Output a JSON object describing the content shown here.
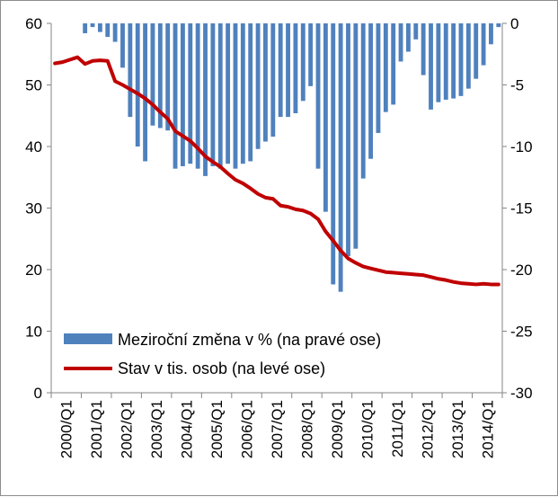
{
  "chart_data": {
    "type": "bar+line",
    "title": "",
    "x": [
      "2000/Q1",
      "2000/Q2",
      "2000/Q3",
      "2000/Q4",
      "2001/Q1",
      "2001/Q2",
      "2001/Q3",
      "2001/Q4",
      "2002/Q1",
      "2002/Q2",
      "2002/Q3",
      "2002/Q4",
      "2003/Q1",
      "2003/Q2",
      "2003/Q3",
      "2003/Q4",
      "2004/Q1",
      "2004/Q2",
      "2004/Q3",
      "2004/Q4",
      "2005/Q1",
      "2005/Q2",
      "2005/Q3",
      "2005/Q4",
      "2006/Q1",
      "2006/Q2",
      "2006/Q3",
      "2006/Q4",
      "2007/Q1",
      "2007/Q2",
      "2007/Q3",
      "2007/Q4",
      "2008/Q1",
      "2008/Q2",
      "2008/Q3",
      "2008/Q4",
      "2009/Q1",
      "2009/Q2",
      "2009/Q3",
      "2009/Q4",
      "2010/Q1",
      "2010/Q2",
      "2010/Q3",
      "2010/Q4",
      "2011/Q1",
      "2011/Q2",
      "2011/Q3",
      "2011/Q4",
      "2012/Q1",
      "2012/Q2",
      "2012/Q3",
      "2012/Q4",
      "2013/Q1",
      "2013/Q2",
      "2013/Q3",
      "2013/Q4",
      "2014/Q1",
      "2014/Q2",
      "2014/Q3",
      "2014/Q4"
    ],
    "x_tick_labels": [
      "2000/Q1",
      "2001/Q1",
      "2002/Q1",
      "2003/Q1",
      "2004/Q1",
      "2005/Q1",
      "2006/Q1",
      "2007/Q1",
      "2008/Q1",
      "2009/Q1",
      "2010/Q1",
      "2011/Q1",
      "2012/Q1",
      "2013/Q1",
      "2014/Q1"
    ],
    "left_axis": {
      "ylim": [
        0,
        60
      ],
      "ticks": [
        "0",
        "10",
        "20",
        "30",
        "40",
        "50",
        "60"
      ]
    },
    "right_axis": {
      "ylim": [
        -30,
        0
      ],
      "ticks": [
        "0",
        "-5",
        "-10",
        "-15",
        "-20",
        "-25",
        "-30"
      ]
    },
    "series": [
      {
        "name": "Meziroční změna v % (na pravé ose)",
        "type": "bar",
        "axis": "right",
        "color": "#4f81bd",
        "values": [
          0,
          0,
          0,
          0,
          -0.8,
          -0.3,
          -0.7,
          -1.1,
          -1.5,
          -3.6,
          -7.6,
          -10,
          -11.2,
          -8.3,
          -8.5,
          -8.7,
          -11.8,
          -11.6,
          -11.4,
          -11.8,
          -12.4,
          -11.6,
          -11.8,
          -11.4,
          -11.8,
          -11.4,
          -11.2,
          -10.2,
          -9.6,
          -9.2,
          -7.6,
          -7.6,
          -7.3,
          -6.3,
          -5.1,
          -11.8,
          -15.3,
          -21.2,
          -21.8,
          -18.9,
          -18.3,
          -12.6,
          -11,
          -8.9,
          -7.2,
          -6.6,
          -3.1,
          -2.3,
          -1.3,
          -4.2,
          -7,
          -6.4,
          -6.2,
          -6.1,
          -5.9,
          -5.3,
          -4.5,
          -3.4,
          -1.7,
          -0.3
        ]
      },
      {
        "name": "Stav v tis. osob (na levé ose)",
        "type": "line",
        "axis": "left",
        "color": "#c00000",
        "values": [
          53.5,
          53.7,
          54.1,
          54.5,
          53.4,
          53.9,
          54.0,
          53.9,
          50.6,
          50.0,
          49.3,
          48.6,
          47.8,
          46.8,
          45.6,
          44.5,
          42.5,
          41.7,
          40.9,
          39.7,
          38.4,
          37.5,
          36.7,
          35.6,
          34.6,
          34.0,
          33.2,
          32.3,
          31.7,
          31.5,
          30.4,
          30.2,
          29.8,
          29.6,
          29.1,
          28.2,
          26.2,
          24.7,
          23.1,
          21.8,
          21.1,
          20.5,
          20.2,
          19.9,
          19.6,
          19.5,
          19.4,
          19.3,
          19.2,
          19.1,
          18.8,
          18.5,
          18.3,
          18.0,
          17.8,
          17.7,
          17.6,
          17.7,
          17.6,
          17.6
        ]
      }
    ],
    "legend": {
      "placement": "inside-bottom-left",
      "entries": [
        "Meziroční změna v % (na pravé ose)",
        "Stav v tis. osob (na levé ose)"
      ]
    },
    "grid": false
  }
}
